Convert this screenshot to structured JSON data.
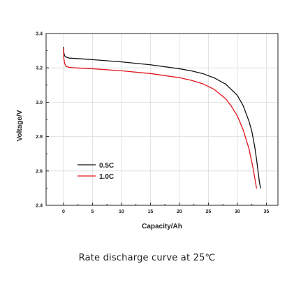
{
  "chart_data": {
    "type": "line",
    "title": "",
    "xlabel": "Capacity/Ah",
    "ylabel": "Voltage/V",
    "xlim": [
      -3,
      37
    ],
    "ylim": [
      2.4,
      3.4
    ],
    "xticks": [
      0,
      5,
      10,
      15,
      20,
      25,
      30,
      35
    ],
    "yticks": [
      2.4,
      2.6,
      2.8,
      3.0,
      3.2,
      3.4
    ],
    "ytick_labels": [
      "2.4",
      "2.6",
      "2.8",
      "3.0",
      "3.2",
      "3.4"
    ],
    "grid": true,
    "legend_position": "lower-left",
    "series": [
      {
        "name": "0.5C",
        "color": "#111111",
        "x": [
          0,
          0.05,
          0.2,
          0.5,
          1,
          2,
          5,
          10,
          15,
          20,
          22,
          24,
          26,
          28,
          30,
          31,
          32,
          32.5,
          33,
          33.3,
          33.6,
          33.8,
          34.0
        ],
        "y": [
          3.32,
          3.29,
          3.27,
          3.262,
          3.257,
          3.255,
          3.248,
          3.235,
          3.218,
          3.195,
          3.183,
          3.167,
          3.142,
          3.105,
          3.04,
          2.98,
          2.89,
          2.83,
          2.74,
          2.67,
          2.59,
          2.535,
          2.5
        ]
      },
      {
        "name": "1.0C",
        "color": "#e0141c",
        "x": [
          0,
          0.05,
          0.2,
          0.5,
          1,
          2,
          5,
          10,
          15,
          20,
          22,
          24,
          26,
          28,
          29,
          30,
          31,
          32,
          32.5,
          32.8,
          33.1,
          33.3
        ],
        "y": [
          3.31,
          3.26,
          3.225,
          3.208,
          3.203,
          3.2,
          3.195,
          3.183,
          3.167,
          3.143,
          3.128,
          3.108,
          3.075,
          3.02,
          2.975,
          2.92,
          2.84,
          2.73,
          2.65,
          2.6,
          2.54,
          2.5
        ]
      }
    ],
    "caption": "Rate discharge curve at 25℃"
  }
}
